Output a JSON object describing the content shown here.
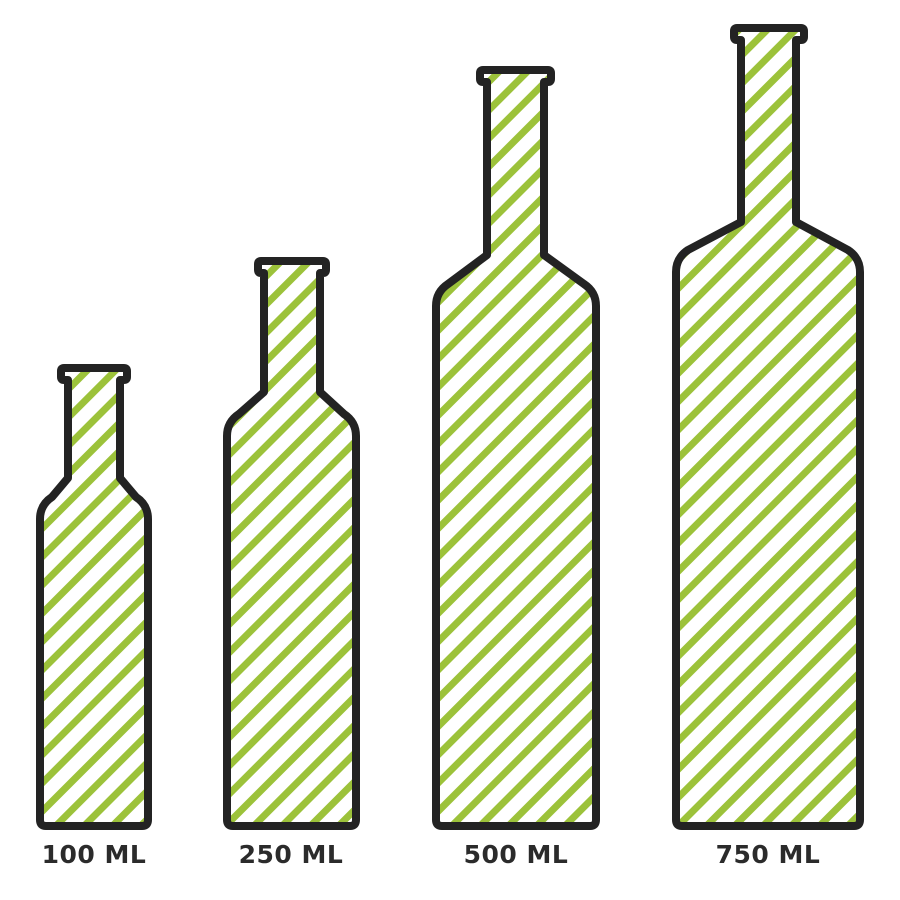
{
  "colors": {
    "stripe": "#9cc23a",
    "outline": "#232323",
    "background": "#ffffff"
  },
  "bottles": [
    {
      "label": "100 ML"
    },
    {
      "label": "250 ML"
    },
    {
      "label": "500 ML"
    },
    {
      "label": "750 ML"
    }
  ]
}
